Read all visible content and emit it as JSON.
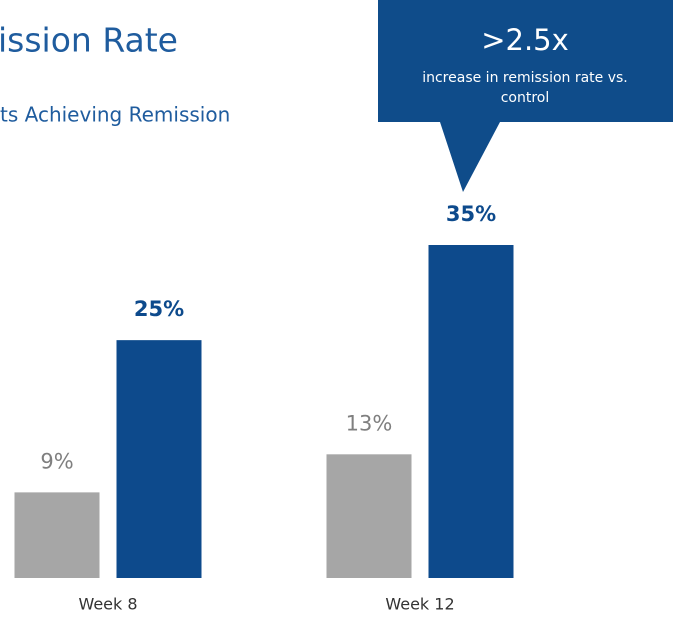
{
  "chart_data": {
    "type": "bar",
    "title": "ission Rate",
    "subtitle": "ts Achieving Remission",
    "categories": [
      "Week 8",
      "Week 12"
    ],
    "series": [
      {
        "color": "#a6a6a6",
        "values": [
          9,
          13
        ],
        "value_labels": [
          "9%",
          "13%"
        ]
      },
      {
        "color": "#0d4a8c",
        "values": [
          25,
          35
        ],
        "value_labels": [
          "25%",
          "35%"
        ]
      }
    ],
    "annotations": [
      ">2.5x",
      "increase in remission rate vs.",
      "control"
    ]
  }
}
